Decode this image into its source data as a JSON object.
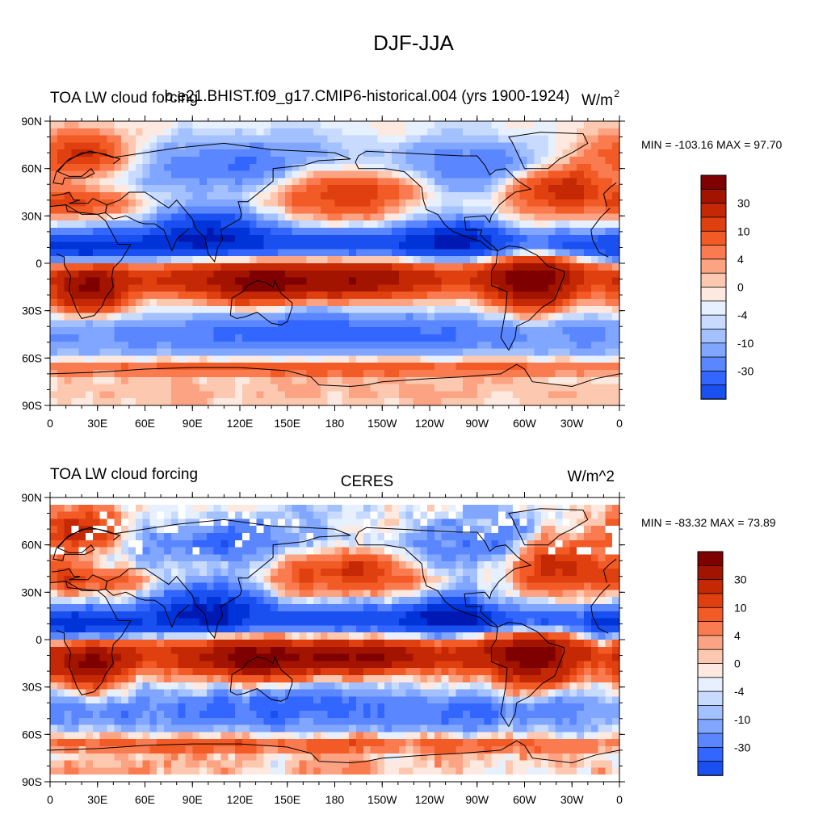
{
  "page": {
    "title": "DJF-JJA"
  },
  "colors": {
    "levels": [
      -50,
      -40,
      -30,
      -20,
      -15,
      -10,
      -6,
      -4,
      -2,
      0,
      2,
      4,
      6,
      10,
      15,
      20,
      30,
      40,
      50
    ],
    "palette": [
      "#00007f",
      "#0019b2",
      "#0033d8",
      "#1a50f0",
      "#3366ff",
      "#5a86ff",
      "#80a6ff",
      "#a3c0ff",
      "#c8dbff",
      "#e6f0ff",
      "#fde9df",
      "#fcc9b0",
      "#fca383",
      "#fa7b4f",
      "#f25a26",
      "#e04010",
      "#c42804",
      "#a31400",
      "#7f0000"
    ],
    "coastline": "#000000"
  },
  "chart_data": [
    {
      "type": "heatmap",
      "left_title": "TOA LW cloud forcing",
      "center_title": "b.e21.BHIST.f09_g17.CMIP6-historical.004 (yrs 1900-1924)",
      "right_title": "W/m",
      "right_title_sup": "2",
      "min_max": "MIN = -103.16 MAX =  97.70",
      "colorbar_labels": [
        "30",
        "10",
        "4",
        "0",
        "-4",
        "-10",
        "-30"
      ],
      "x_ticks": [
        "0",
        "30E",
        "60E",
        "90E",
        "120E",
        "150E",
        "180",
        "150W",
        "120W",
        "90W",
        "60W",
        "30W",
        "0"
      ],
      "y_ticks": [
        "90N",
        "60N",
        "30N",
        "0",
        "30S",
        "60S",
        "90S"
      ],
      "xlim": [
        0,
        360
      ],
      "ylim": [
        -90,
        90
      ],
      "missing_data": false
    },
    {
      "type": "heatmap",
      "left_title": "TOA LW cloud forcing",
      "center_title": "CERES",
      "right_title": "W/m^2",
      "right_title_sup": "",
      "min_max": "MIN = -83.32 MAX =  73.89",
      "colorbar_labels": [
        "30",
        "10",
        "4",
        "0",
        "-4",
        "-10",
        "-30"
      ],
      "x_ticks": [
        "0",
        "30E",
        "60E",
        "90E",
        "120E",
        "150E",
        "180",
        "150W",
        "120W",
        "90W",
        "60W",
        "30W",
        "0"
      ],
      "y_ticks": [
        "90N",
        "60N",
        "30N",
        "0",
        "30S",
        "60S",
        "90S"
      ],
      "xlim": [
        0,
        360
      ],
      "ylim": [
        -90,
        90
      ],
      "missing_data": true
    }
  ]
}
